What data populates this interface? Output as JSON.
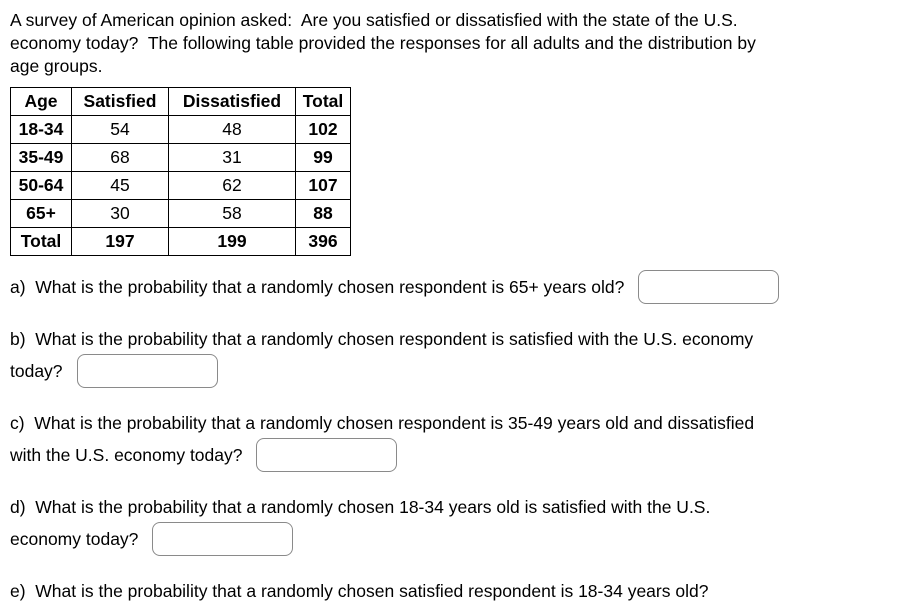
{
  "page": {
    "background": "#ffffff",
    "text_color": "#000000",
    "table_border_color": "#000000",
    "input_border_color": "#8a8a8a"
  },
  "intro": {
    "lines": [
      "A survey of American opinion asked:  Are you satisfied or dissatisfied with the state of the U.S.",
      "economy today?  The following table provided the responses for all adults and the distribution by",
      "age groups."
    ]
  },
  "table": {
    "headers": [
      "Age",
      "Satisfied",
      "Dissatisfied",
      "Total"
    ],
    "rows": [
      {
        "age": "18-34",
        "satisfied": "54",
        "dissatisfied": "48",
        "total": "102"
      },
      {
        "age": "35-49",
        "satisfied": "68",
        "dissatisfied": "31",
        "total": "99"
      },
      {
        "age": "50-64",
        "satisfied": "45",
        "dissatisfied": "62",
        "total": "107"
      },
      {
        "age": "65+",
        "satisfied": "30",
        "dissatisfied": "58",
        "total": "88"
      },
      {
        "age": "Total",
        "satisfied": "197",
        "dissatisfied": "199",
        "total": "396"
      }
    ]
  },
  "questions": [
    {
      "label": "a",
      "lines": [
        "a)  What is the probability that a randomly chosen respondent is 65+ years old?"
      ],
      "answer_value": ""
    },
    {
      "label": "b",
      "lines": [
        "b)  What is the probability that a randomly chosen respondent is satisfied with the U.S. economy",
        "today?"
      ],
      "answer_value": ""
    },
    {
      "label": "c",
      "lines": [
        "c)  What is the probability that a randomly chosen respondent is 35-49 years old and dissatisfied",
        "with the U.S. economy today?"
      ],
      "answer_value": ""
    },
    {
      "label": "d",
      "lines": [
        "d)  What is the probability that a randomly chosen 18-34 years old is satisfied with the U.S.",
        "economy today?"
      ],
      "answer_value": ""
    },
    {
      "label": "e",
      "lines": [
        "e)  What is the probability that a randomly chosen satisfied respondent is 18-34 years old?"
      ],
      "answer_value": ""
    }
  ]
}
